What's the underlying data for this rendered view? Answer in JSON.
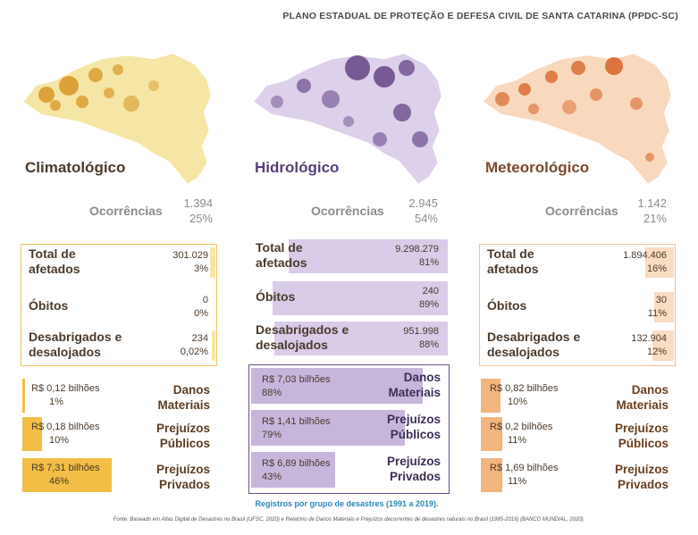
{
  "header": "PLANO ESTADUAL DE PROTEÇÃO E DEFESA CIVIL DE SANTA CATARINA (PPDC-SC)",
  "colors": {
    "clima": "#f2be45",
    "clima_light": "#f5e3a8",
    "hidro": "#6b4d8c",
    "hidro_light": "#d9cce8",
    "meteo": "#e08a4e",
    "meteo_light": "#f7d9bf",
    "title": "#4a3a2c"
  },
  "chart_data": [
    {
      "type": "bar",
      "title": "Climatológico",
      "occurrences": {
        "label": "Ocorrências",
        "count": "1.394",
        "pct": "25%",
        "pct_value": 25
      },
      "stats": [
        {
          "label": "Total de afetados",
          "value": "301.029",
          "pct": "3%",
          "pct_value": 3
        },
        {
          "label": "Óbitos",
          "value": "0",
          "pct": "0%",
          "pct_value": 0
        },
        {
          "label": "Desabrigados e desalojados",
          "value": "234",
          "pct": "0,02%",
          "pct_value": 0.02
        }
      ],
      "losses": [
        {
          "label": "Danos Materiais",
          "value": "R$ 0,12 bilhões",
          "pct": "1%",
          "pct_value": 1
        },
        {
          "label": "Prejuízos Públicos",
          "value": "R$ 0,18 bilhões",
          "pct": "10%",
          "pct_value": 10
        },
        {
          "label": "Prejuízos Privados",
          "value": "R$ 7,31 bilhões",
          "pct": "46%",
          "pct_value": 46
        }
      ]
    },
    {
      "type": "bar",
      "title": "Hidrológico",
      "occurrences": {
        "label": "Ocorrências",
        "count": "2.945",
        "pct": "54%",
        "pct_value": 54
      },
      "stats": [
        {
          "label": "Total de afetados",
          "value": "9.298.279",
          "pct": "81%",
          "pct_value": 81
        },
        {
          "label": "Óbitos",
          "value": "240",
          "pct": "89%",
          "pct_value": 89
        },
        {
          "label": "Desabrigados e desalojados",
          "value": "951.998",
          "pct": "88%",
          "pct_value": 88
        }
      ],
      "losses": [
        {
          "label": "Danos Materiais",
          "value": "R$ 7,03 bilhões",
          "pct": "88%",
          "pct_value": 88
        },
        {
          "label": "Prejuízos Públicos",
          "value": "R$ 1,41 bilhões",
          "pct": "79%",
          "pct_value": 79
        },
        {
          "label": "Prejuízos Privados",
          "value": "R$ 6,89 bilhões",
          "pct": "43%",
          "pct_value": 43
        }
      ]
    },
    {
      "type": "bar",
      "title": "Meteorológico",
      "occurrences": {
        "label": "Ocorrências",
        "count": "1.142",
        "pct": "21%",
        "pct_value": 21
      },
      "stats": [
        {
          "label": "Total de afetados",
          "value": "1.894.406",
          "pct": "16%",
          "pct_value": 16
        },
        {
          "label": "Óbitos",
          "value": "30",
          "pct": "11%",
          "pct_value": 11
        },
        {
          "label": "Desabrigados e desalojados",
          "value": "132.904",
          "pct": "12%",
          "pct_value": 12
        }
      ],
      "losses": [
        {
          "label": "Danos Materiais",
          "value": "R$ 0,82 bilhões",
          "pct": "10%",
          "pct_value": 10
        },
        {
          "label": "Prejuízos Públicos",
          "value": "R$ 0,2 bilhões",
          "pct": "11%",
          "pct_value": 11
        },
        {
          "label": "Prejuízos Privados",
          "value": "R$ 1,69 bilhões",
          "pct": "11%",
          "pct_value": 11
        }
      ]
    }
  ],
  "registros": "Registros por grupo de desastres (1991 a 2019).",
  "fonte": "Fonte: Baseado em Atlas Digital de Desastres no Brasil (UFSC, 2020) e Relatório de Danos Materiais e Prejuízos decorrentes de desastres naturais no Brasil (1995-2019) (BANCO MUNDIAL, 2020)."
}
